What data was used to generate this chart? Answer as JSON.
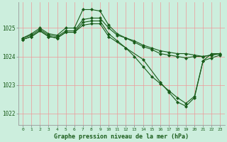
{
  "title": "Graphe pression niveau de la mer (hPa)",
  "bg_color": "#cceedd",
  "grid_color": "#ee9999",
  "line_color": "#1a5c1a",
  "x_ticks": [
    0,
    1,
    2,
    3,
    4,
    5,
    6,
    7,
    8,
    9,
    10,
    11,
    12,
    13,
    14,
    15,
    16,
    17,
    18,
    19,
    20,
    21,
    22,
    23
  ],
  "y_ticks": [
    1022,
    1023,
    1024,
    1025
  ],
  "ylim": [
    1021.6,
    1025.9
  ],
  "xlim": [
    -0.5,
    23.5
  ],
  "lines": [
    {
      "x": [
        0,
        1,
        2,
        3,
        4,
        5,
        6,
        7,
        8,
        9,
        10,
        11,
        12,
        13,
        14,
        15,
        16,
        17,
        18,
        19,
        20,
        21,
        22,
        23
      ],
      "y": [
        1024.65,
        1024.8,
        1025.0,
        1024.8,
        1024.75,
        1025.0,
        1025.0,
        1025.65,
        1025.65,
        1025.6,
        1025.1,
        1024.8,
        1024.65,
        1024.55,
        1024.4,
        1024.3,
        1024.2,
        1024.15,
        1024.1,
        1024.1,
        1024.05,
        1024.0,
        1024.05,
        1024.1
      ]
    },
    {
      "x": [
        0,
        1,
        2,
        3,
        4,
        5,
        6,
        7,
        8,
        9,
        10,
        11,
        12,
        13,
        14,
        15,
        16,
        17,
        18,
        19,
        20,
        21,
        22,
        23
      ],
      "y": [
        1024.65,
        1024.75,
        1024.95,
        1024.75,
        1024.7,
        1024.9,
        1024.9,
        1025.3,
        1025.35,
        1025.35,
        1025.0,
        1024.75,
        1024.65,
        1024.5,
        1024.35,
        1024.25,
        1024.1,
        1024.05,
        1024.0,
        1023.95,
        1024.0,
        1024.0,
        1024.05,
        1024.1
      ]
    },
    {
      "x": [
        0,
        1,
        2,
        3,
        4,
        5,
        6,
        7,
        8,
        9,
        10,
        11,
        12,
        13,
        14,
        15,
        16,
        17,
        18,
        19,
        20,
        21,
        22,
        23
      ],
      "y": [
        1024.6,
        1024.7,
        1024.9,
        1024.7,
        1024.65,
        1024.85,
        1024.85,
        1025.2,
        1025.25,
        1025.25,
        1024.8,
        1024.55,
        1024.3,
        1024.0,
        1023.65,
        1023.3,
        1023.05,
        1022.8,
        1022.55,
        1022.35,
        1022.6,
        1023.85,
        1023.95,
        1024.05
      ]
    },
    {
      "x": [
        0,
        1,
        2,
        3,
        4,
        5,
        6,
        7,
        8,
        9,
        10,
        12,
        14,
        16,
        17,
        18,
        19,
        20,
        21,
        22,
        23
      ],
      "y": [
        1024.6,
        1024.7,
        1024.9,
        1024.7,
        1024.65,
        1024.85,
        1024.85,
        1025.1,
        1025.15,
        1025.15,
        1024.7,
        1024.3,
        1023.9,
        1023.1,
        1022.75,
        1022.4,
        1022.25,
        1022.55,
        1023.85,
        1024.1,
        1024.1
      ]
    }
  ]
}
